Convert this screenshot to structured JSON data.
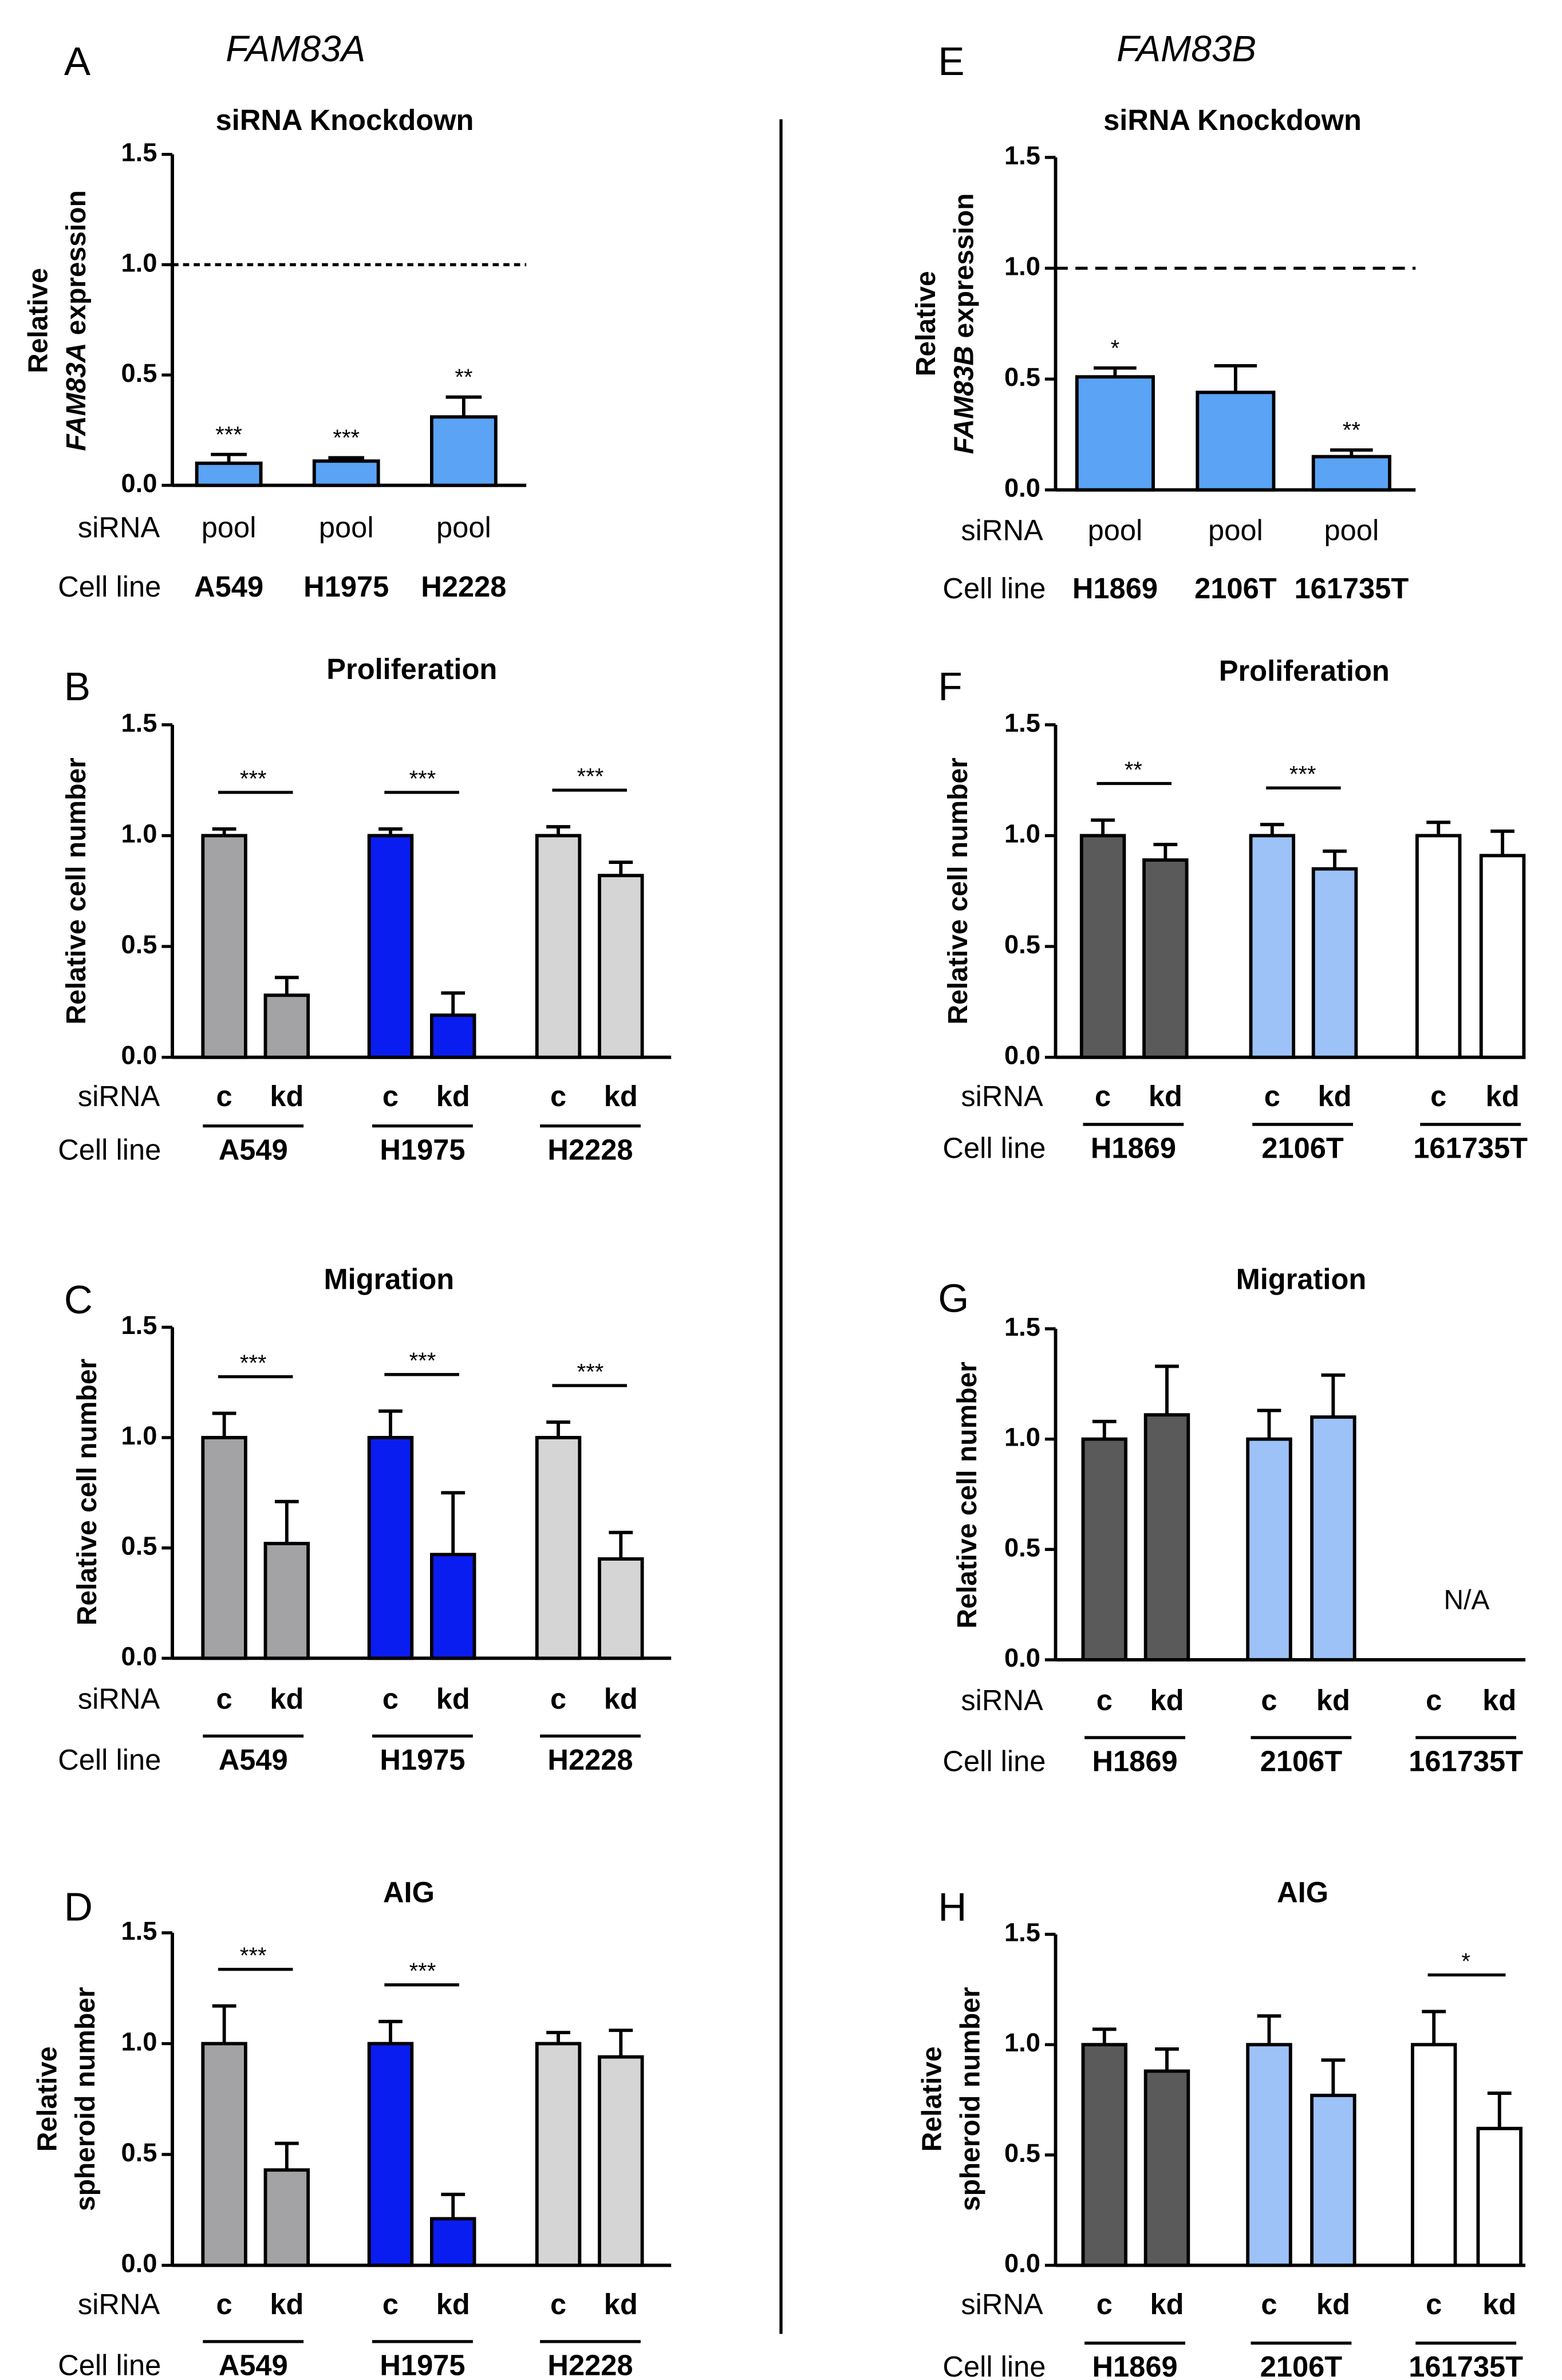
{
  "genes": {
    "left": "FAM83A",
    "right": "FAM83B"
  },
  "row_labels": {
    "sirna": "siRNA",
    "cell_line": "Cell line"
  },
  "colors": {
    "A549": "#a3a3a6",
    "H1975": "#0a1df0",
    "H2228": "#d5d5d5",
    "H1869": "#5a5a5a",
    "2106T": "#9cc2f7",
    "161735T": "#ffffff",
    "knockdown": "#5aa3f5"
  },
  "chart_data": [
    {
      "panel": "A",
      "type": "bar",
      "title": "siRNA Knockdown",
      "ylabel_lines": [
        {
          "parts": [
            {
              "text": "Relative"
            }
          ]
        },
        {
          "parts": [
            {
              "text": "FAM83A",
              "italic": true
            },
            {
              "text": " expression"
            }
          ]
        }
      ],
      "ylim": [
        0,
        1.5
      ],
      "yticks": [
        "0.0",
        "0.5",
        "1.0",
        "1.5"
      ],
      "reference_line": 1.0,
      "sirna_labels": [
        "pool",
        "pool",
        "pool"
      ],
      "cell_lines": [
        "A549",
        "H1975",
        "H2228"
      ],
      "values": [
        0.1,
        0.11,
        0.31
      ],
      "errors": [
        0.04,
        0.015,
        0.09
      ],
      "colors": [
        "#5aa3f5",
        "#5aa3f5",
        "#5aa3f5"
      ],
      "significance": [
        "***",
        "***",
        "**"
      ]
    },
    {
      "panel": "B",
      "type": "bar",
      "title": "Proliferation",
      "ylabel_lines": [
        {
          "parts": [
            {
              "text": "Relative cell number"
            }
          ]
        }
      ],
      "ylim": [
        0,
        1.5
      ],
      "yticks": [
        "0.0",
        "0.5",
        "1.0",
        "1.5"
      ],
      "categories": [
        "c",
        "kd",
        "c",
        "kd",
        "c",
        "kd"
      ],
      "cell_lines": [
        "A549",
        "H1975",
        "H2228"
      ],
      "values": [
        1.0,
        0.28,
        1.0,
        0.19,
        1.0,
        0.82
      ],
      "errors": [
        0.03,
        0.08,
        0.03,
        0.1,
        0.04,
        0.06
      ],
      "colors": [
        "#a3a3a6",
        "#a3a3a6",
        "#0a1df0",
        "#0a1df0",
        "#d5d5d5",
        "#d5d5d5"
      ],
      "significance": [
        "***",
        "***",
        "***"
      ]
    },
    {
      "panel": "C",
      "type": "bar",
      "title": "Migration",
      "ylabel_lines": [
        {
          "parts": [
            {
              "text": "Relative cell number"
            }
          ]
        }
      ],
      "ylim": [
        0,
        1.5
      ],
      "yticks": [
        "0.0",
        "0.5",
        "1.0",
        "1.5"
      ],
      "categories": [
        "c",
        "kd",
        "c",
        "kd",
        "c",
        "kd"
      ],
      "cell_lines": [
        "A549",
        "H1975",
        "H2228"
      ],
      "values": [
        1.0,
        0.52,
        1.0,
        0.47,
        1.0,
        0.45
      ],
      "errors": [
        0.11,
        0.19,
        0.12,
        0.28,
        0.07,
        0.12
      ],
      "colors": [
        "#a3a3a6",
        "#a3a3a6",
        "#0a1df0",
        "#0a1df0",
        "#d5d5d5",
        "#d5d5d5"
      ],
      "significance": [
        "***",
        "***",
        "***"
      ]
    },
    {
      "panel": "D",
      "type": "bar",
      "title": "AIG",
      "ylabel_lines": [
        {
          "parts": [
            {
              "text": "Relative"
            }
          ]
        },
        {
          "parts": [
            {
              "text": "spheroid number"
            }
          ]
        }
      ],
      "ylim": [
        0,
        1.5
      ],
      "yticks": [
        "0.0",
        "0.5",
        "1.0",
        "1.5"
      ],
      "categories": [
        "c",
        "kd",
        "c",
        "kd",
        "c",
        "kd"
      ],
      "cell_lines": [
        "A549",
        "H1975",
        "H2228"
      ],
      "values": [
        1.0,
        0.43,
        1.0,
        0.21,
        1.0,
        0.94
      ],
      "errors": [
        0.17,
        0.12,
        0.1,
        0.11,
        0.05,
        0.12
      ],
      "colors": [
        "#a3a3a6",
        "#a3a3a6",
        "#0a1df0",
        "#0a1df0",
        "#d5d5d5",
        "#d5d5d5"
      ],
      "significance": [
        "***",
        "***",
        ""
      ]
    },
    {
      "panel": "E",
      "type": "bar",
      "title": "siRNA Knockdown",
      "ylabel_lines": [
        {
          "parts": [
            {
              "text": "Relative"
            }
          ]
        },
        {
          "parts": [
            {
              "text": "FAM83B",
              "italic": true
            },
            {
              "text": " expression"
            }
          ]
        }
      ],
      "ylim": [
        0,
        1.5
      ],
      "yticks": [
        "0.0",
        "0.5",
        "1.0",
        "1.5"
      ],
      "reference_line": 1.0,
      "sirna_labels": [
        "pool",
        "pool",
        "pool"
      ],
      "cell_lines": [
        "H1869",
        "2106T",
        "161735T"
      ],
      "values": [
        0.51,
        0.44,
        0.15
      ],
      "errors": [
        0.04,
        0.12,
        0.03
      ],
      "colors": [
        "#5aa3f5",
        "#5aa3f5",
        "#5aa3f5"
      ],
      "significance": [
        "*",
        "",
        "**"
      ]
    },
    {
      "panel": "F",
      "type": "bar",
      "title": "Proliferation",
      "ylabel_lines": [
        {
          "parts": [
            {
              "text": "Relative cell number"
            }
          ]
        }
      ],
      "ylim": [
        0,
        1.5
      ],
      "yticks": [
        "0.0",
        "0.5",
        "1.0",
        "1.5"
      ],
      "categories": [
        "c",
        "kd",
        "c",
        "kd",
        "c",
        "kd"
      ],
      "cell_lines": [
        "H1869",
        "2106T",
        "161735T"
      ],
      "values": [
        1.0,
        0.89,
        1.0,
        0.85,
        1.0,
        0.91
      ],
      "errors": [
        0.07,
        0.07,
        0.05,
        0.08,
        0.06,
        0.11
      ],
      "colors": [
        "#5a5a5a",
        "#5a5a5a",
        "#9cc2f7",
        "#9cc2f7",
        "#ffffff",
        "#ffffff"
      ],
      "significance": [
        "**",
        "***",
        ""
      ]
    },
    {
      "panel": "G",
      "type": "bar",
      "title": "Migration",
      "ylabel_lines": [
        {
          "parts": [
            {
              "text": "Relative cell number"
            }
          ]
        }
      ],
      "ylim": [
        0,
        1.5
      ],
      "yticks": [
        "0.0",
        "0.5",
        "1.0",
        "1.5"
      ],
      "categories": [
        "c",
        "kd",
        "c",
        "kd",
        "c",
        "kd"
      ],
      "cell_lines": [
        "H1869",
        "2106T",
        "161735T"
      ],
      "values": [
        1.0,
        1.11,
        1.0,
        1.1,
        null,
        null
      ],
      "errors": [
        0.08,
        0.22,
        0.13,
        0.19,
        null,
        null
      ],
      "colors": [
        "#5a5a5a",
        "#5a5a5a",
        "#9cc2f7",
        "#9cc2f7",
        "#ffffff",
        "#ffffff"
      ],
      "significance": [
        "",
        "",
        ""
      ],
      "na_text": "N/A"
    },
    {
      "panel": "H",
      "type": "bar",
      "title": "AIG",
      "ylabel_lines": [
        {
          "parts": [
            {
              "text": "Relative"
            }
          ]
        },
        {
          "parts": [
            {
              "text": "spheroid number"
            }
          ]
        }
      ],
      "ylim": [
        0,
        1.5
      ],
      "yticks": [
        "0.0",
        "0.5",
        "1.0",
        "1.5"
      ],
      "categories": [
        "c",
        "kd",
        "c",
        "kd",
        "c",
        "kd"
      ],
      "cell_lines": [
        "H1869",
        "2106T",
        "161735T"
      ],
      "values": [
        1.0,
        0.88,
        1.0,
        0.77,
        1.0,
        0.62
      ],
      "errors": [
        0.07,
        0.1,
        0.13,
        0.16,
        0.15,
        0.16
      ],
      "colors": [
        "#5a5a5a",
        "#5a5a5a",
        "#9cc2f7",
        "#9cc2f7",
        "#ffffff",
        "#ffffff"
      ],
      "significance": [
        "",
        "",
        "*"
      ]
    }
  ]
}
